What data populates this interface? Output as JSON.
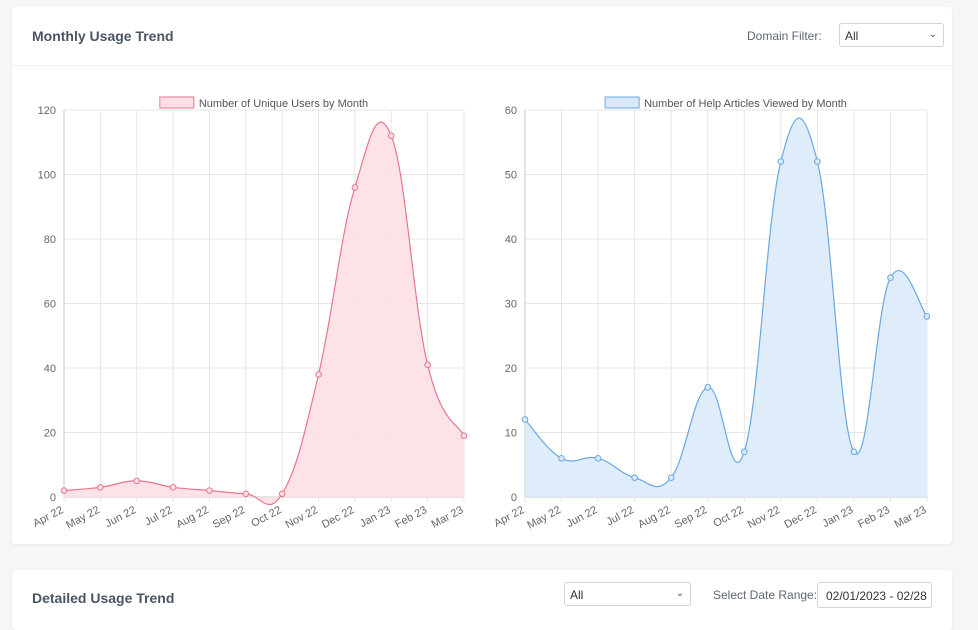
{
  "usage_card": {
    "title": "Monthly Usage Trend",
    "filter_label": "Domain Filter:",
    "filter_value": "All"
  },
  "detailed_card": {
    "title": "Detailed Usage Trend",
    "select_value": "All",
    "date_label": "Select Date Range:",
    "date_value": "02/01/2023 - 02/28"
  },
  "chart_data": [
    {
      "type": "line",
      "fill": "area",
      "legend": "Number of Unique Users by Month",
      "categories": [
        "Apr 22",
        "May 22",
        "Jun 22",
        "Jul 22",
        "Aug 22",
        "Sep 22",
        "Oct 22",
        "Nov 22",
        "Dec 22",
        "Jan 23",
        "Feb 23",
        "Mar 23"
      ],
      "values": [
        2,
        3,
        5,
        3,
        2,
        1,
        1,
        38,
        96,
        112,
        41,
        19
      ],
      "ylim": [
        0,
        120
      ],
      "yticks": [
        0,
        20,
        40,
        60,
        80,
        100,
        120
      ],
      "color": "#e8768a",
      "fill_color": "#fde0e5",
      "grid": true,
      "legend_position": "top"
    },
    {
      "type": "line",
      "fill": "area",
      "legend": "Number of Help Articles Viewed by Month",
      "categories": [
        "Apr 22",
        "May 22",
        "Jun 22",
        "Jul 22",
        "Aug 22",
        "Sep 22",
        "Oct 22",
        "Nov 22",
        "Dec 22",
        "Jan 23",
        "Feb 23",
        "Mar 23"
      ],
      "values": [
        12,
        6,
        6,
        3,
        3,
        17,
        7,
        52,
        52,
        7,
        34,
        28
      ],
      "ylim": [
        0,
        60
      ],
      "yticks": [
        0,
        10,
        20,
        30,
        40,
        50,
        60
      ],
      "color": "#6aa8e0",
      "fill_color": "#dbeafa",
      "grid": true,
      "legend_position": "top"
    }
  ]
}
